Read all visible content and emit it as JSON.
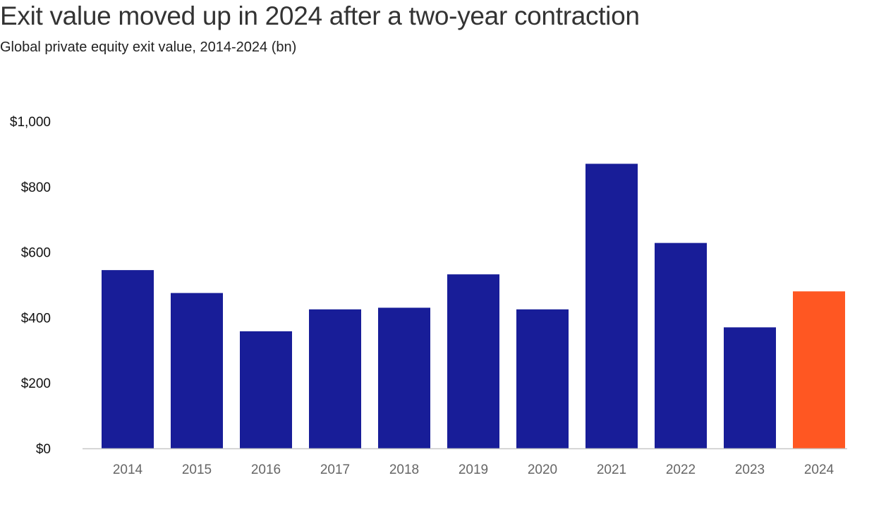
{
  "header": {
    "title": "Exit value moved up in 2024 after a two-year contraction",
    "subtitle": "Global private equity exit value, 2014-2024 (bn)"
  },
  "colors": {
    "bar": "#181d98",
    "highlight": "#ff5722",
    "axis": "#c8c8c8"
  },
  "chart_data": {
    "type": "bar",
    "title": "Exit value moved up in 2024 after a two-year contraction",
    "subtitle": "Global private equity exit value, 2014-2024 (bn)",
    "xlabel": "",
    "ylabel": "",
    "categories": [
      "2014",
      "2015",
      "2016",
      "2017",
      "2018",
      "2019",
      "2020",
      "2021",
      "2022",
      "2023",
      "2024"
    ],
    "values": [
      545,
      475,
      358,
      425,
      430,
      532,
      425,
      870,
      628,
      370,
      480
    ],
    "highlight_category": "2024",
    "ylim": [
      0,
      1000
    ],
    "yticks": [
      0,
      200,
      400,
      600,
      800,
      1000
    ],
    "ytick_labels": [
      "$0",
      "$200",
      "$400",
      "$600",
      "$800",
      "$1,000"
    ],
    "grid": false,
    "legend": "none"
  }
}
